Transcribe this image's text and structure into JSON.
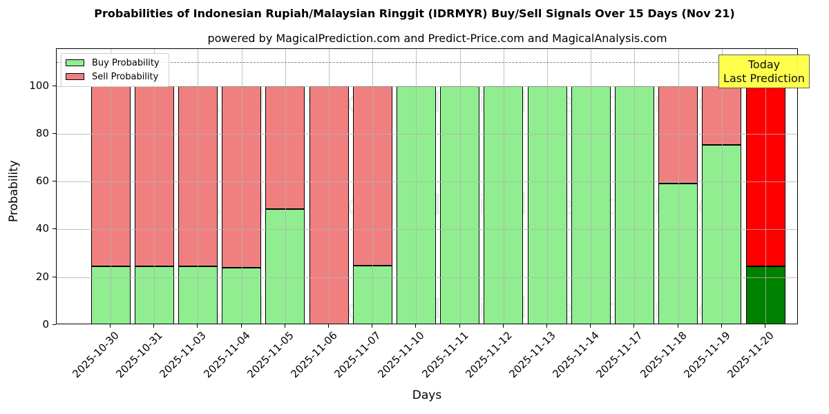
{
  "chart_data": {
    "type": "bar",
    "stacked": true,
    "title": "Probabilities of Indonesian Rupiah/Malaysian Ringgit (IDRMYR) Buy/Sell Signals Over 15 Days (Nov 21)",
    "subtitle": "powered by MagicalPrediction.com and Predict-Price.com and MagicalAnalysis.com",
    "xlabel": "Days",
    "ylabel": "Probability",
    "ylim": [
      0,
      115.5
    ],
    "yticks": [
      0,
      20,
      40,
      60,
      80,
      100
    ],
    "grid": true,
    "reference_line": {
      "y": 110,
      "style": "dashed",
      "color": "#808080"
    },
    "legend": {
      "position": "upper left",
      "entries": [
        "Buy Probability",
        "Sell Probability"
      ]
    },
    "categories": [
      "2025-10-30",
      "2025-10-31",
      "2025-11-03",
      "2025-11-04",
      "2025-11-05",
      "2025-11-06",
      "2025-11-07",
      "2025-11-10",
      "2025-11-11",
      "2025-11-12",
      "2025-11-13",
      "2025-11-14",
      "2025-11-17",
      "2025-11-18",
      "2025-11-19",
      "2025-11-20"
    ],
    "series": [
      {
        "name": "Buy Probability",
        "color": "#90ee90",
        "values": [
          24.6,
          24.6,
          24.6,
          24.0,
          48.6,
          0,
          24.9,
          100,
          100,
          100,
          100,
          100,
          100,
          59.2,
          75.3,
          24.4
        ]
      },
      {
        "name": "Sell Probability",
        "color": "#f08080",
        "values": [
          75.4,
          75.4,
          75.4,
          76.0,
          51.4,
          100,
          75.1,
          0,
          0,
          0,
          0,
          0,
          0,
          40.8,
          24.7,
          75.6
        ]
      }
    ],
    "highlight": {
      "index": 15,
      "buy_color": "#008000",
      "sell_color": "#ff0000"
    },
    "annotation": {
      "text_line1": "Today",
      "text_line2": "Last Prediction",
      "background": "#ffff44"
    },
    "watermarks": [
      "MagicalAnalysis.com",
      "MagicalPrediction.com"
    ]
  }
}
